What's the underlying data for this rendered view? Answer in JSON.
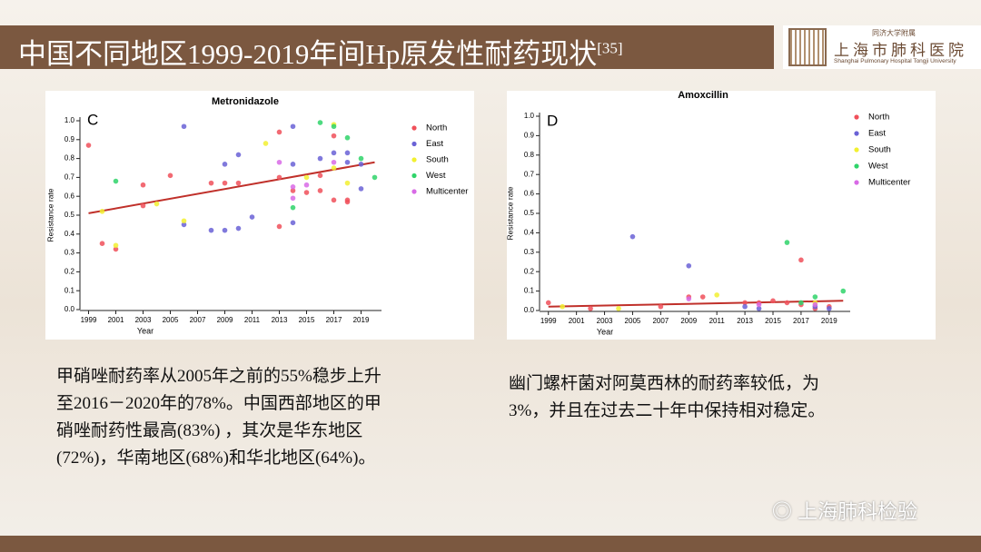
{
  "slide_title": "中国不同地区1999-2019年间Hp原发性耐药现状",
  "slide_title_ref": "[35]",
  "logo": {
    "line1": "同济大学附属",
    "line2": "上海市肺科医院",
    "line3": "Shanghai Pulmonary Hospital Tongji University"
  },
  "captions": [
    [
      "甲硝唑耐药率从2005年之前的55%稳步上升",
      "至2016－2020年的78%。中国西部地区的甲",
      "硝唑耐药性最高(83%) ，其次是华东地区",
      "(72%)，华南地区(68%)和华北地区(64%)。"
    ],
    [
      "幽门螺杆菌对阿莫西林的耐药率较低，为",
      "3%，并且在过去二十年中保持相对稳定。"
    ]
  ],
  "watermark": "上海肺科检验",
  "chart_data": [
    {
      "type": "scatter",
      "panel": "C",
      "title": "Metronidazole",
      "x_label": "Year",
      "y_label": "Resistance rate",
      "xlim": [
        1998.5,
        2020.5
      ],
      "xticks": [
        1999,
        2001,
        2003,
        2005,
        2007,
        2009,
        2011,
        2013,
        2015,
        2017,
        2019
      ],
      "ylim": [
        0,
        1.0
      ],
      "yticks": [
        {
          "value": 0,
          "label": "0.0"
        },
        0.1,
        0.2,
        0.3,
        0.4,
        0.5,
        0.6,
        0.7,
        0.8,
        0.9,
        {
          "value": 1.0,
          "label": "1.0"
        }
      ],
      "series": [
        {
          "name": "North",
          "color": "#f0505a",
          "x": [
            1999,
            2000,
            2001,
            2003,
            2003,
            2005,
            2008,
            2009,
            2010,
            2013,
            2013,
            2013,
            2014,
            2015,
            2016,
            2016,
            2017,
            2017,
            2018,
            2018
          ],
          "values": [
            0.87,
            0.35,
            0.32,
            0.66,
            0.55,
            0.71,
            0.67,
            0.67,
            0.67,
            0.94,
            0.44,
            0.7,
            0.63,
            0.62,
            0.71,
            0.63,
            0.92,
            0.58,
            0.57,
            0.58
          ]
        },
        {
          "name": "East",
          "color": "#6a62d6",
          "x": [
            2006,
            2006,
            2008,
            2009,
            2009,
            2010,
            2010,
            2011,
            2014,
            2014,
            2014,
            2016,
            2017,
            2018,
            2018,
            2019,
            2019
          ],
          "values": [
            0.97,
            0.45,
            0.42,
            0.77,
            0.42,
            0.82,
            0.43,
            0.49,
            0.97,
            0.46,
            0.77,
            0.8,
            0.83,
            0.78,
            0.83,
            0.64,
            0.77
          ]
        },
        {
          "name": "South",
          "color": "#f2f030",
          "x": [
            2000,
            2001,
            2004,
            2006,
            2012,
            2015,
            2017,
            2017,
            2018
          ],
          "values": [
            0.52,
            0.34,
            0.56,
            0.47,
            0.88,
            0.7,
            0.98,
            0.75,
            0.67
          ]
        },
        {
          "name": "West",
          "color": "#2fd46a",
          "x": [
            2001,
            2014,
            2016,
            2017,
            2018,
            2019,
            2020
          ],
          "values": [
            0.68,
            0.54,
            0.99,
            0.97,
            0.91,
            0.8,
            0.7
          ]
        },
        {
          "name": "Multicenter",
          "color": "#d86ae6",
          "x": [
            2013,
            2014,
            2014,
            2015,
            2017
          ],
          "values": [
            0.78,
            0.65,
            0.59,
            0.66,
            0.78
          ]
        }
      ],
      "fit": {
        "color": "#c0302a",
        "x": [
          1999,
          2020
        ],
        "values": [
          0.51,
          0.78
        ]
      }
    },
    {
      "type": "scatter",
      "panel": "D",
      "title": "Amoxcillin",
      "x_label": "Year",
      "y_label": "Resistance rate",
      "xlim": [
        1998.5,
        2020.5
      ],
      "xticks": [
        1999,
        2001,
        2003,
        2005,
        2007,
        2009,
        2011,
        2013,
        2015,
        2017,
        2019
      ],
      "ylim": [
        0,
        1.0
      ],
      "yticks": [
        {
          "value": 0,
          "label": "0.0"
        },
        0.1,
        0.2,
        0.3,
        0.4,
        0.5,
        0.6,
        0.7,
        0.8,
        0.9,
        {
          "value": 1.0,
          "label": "1.0"
        }
      ],
      "series": [
        {
          "name": "North",
          "color": "#f0505a",
          "x": [
            1999,
            2002,
            2007,
            2009,
            2010,
            2013,
            2014,
            2015,
            2016,
            2017,
            2017,
            2018,
            2019
          ],
          "values": [
            0.04,
            0.01,
            0.02,
            0.07,
            0.07,
            0.04,
            0.04,
            0.05,
            0.04,
            0.26,
            0.03,
            0.01,
            0.02
          ]
        },
        {
          "name": "East",
          "color": "#6a62d6",
          "x": [
            2005,
            2009,
            2013,
            2014,
            2018,
            2019
          ],
          "values": [
            0.38,
            0.23,
            0.02,
            0.01,
            0.02,
            0.01
          ]
        },
        {
          "name": "South",
          "color": "#f2f030",
          "x": [
            2000,
            2004,
            2011,
            2018
          ],
          "values": [
            0.02,
            0.01,
            0.08,
            0.04
          ]
        },
        {
          "name": "West",
          "color": "#2fd46a",
          "x": [
            2016,
            2017,
            2018,
            2020
          ],
          "values": [
            0.35,
            0.04,
            0.07,
            0.1
          ]
        },
        {
          "name": "Multicenter",
          "color": "#d86ae6",
          "x": [
            2009,
            2014,
            2018
          ],
          "values": [
            0.06,
            0.03,
            0.03
          ]
        }
      ],
      "fit": {
        "color": "#c0302a",
        "x": [
          1999,
          2020
        ],
        "values": [
          0.02,
          0.05
        ]
      }
    }
  ]
}
